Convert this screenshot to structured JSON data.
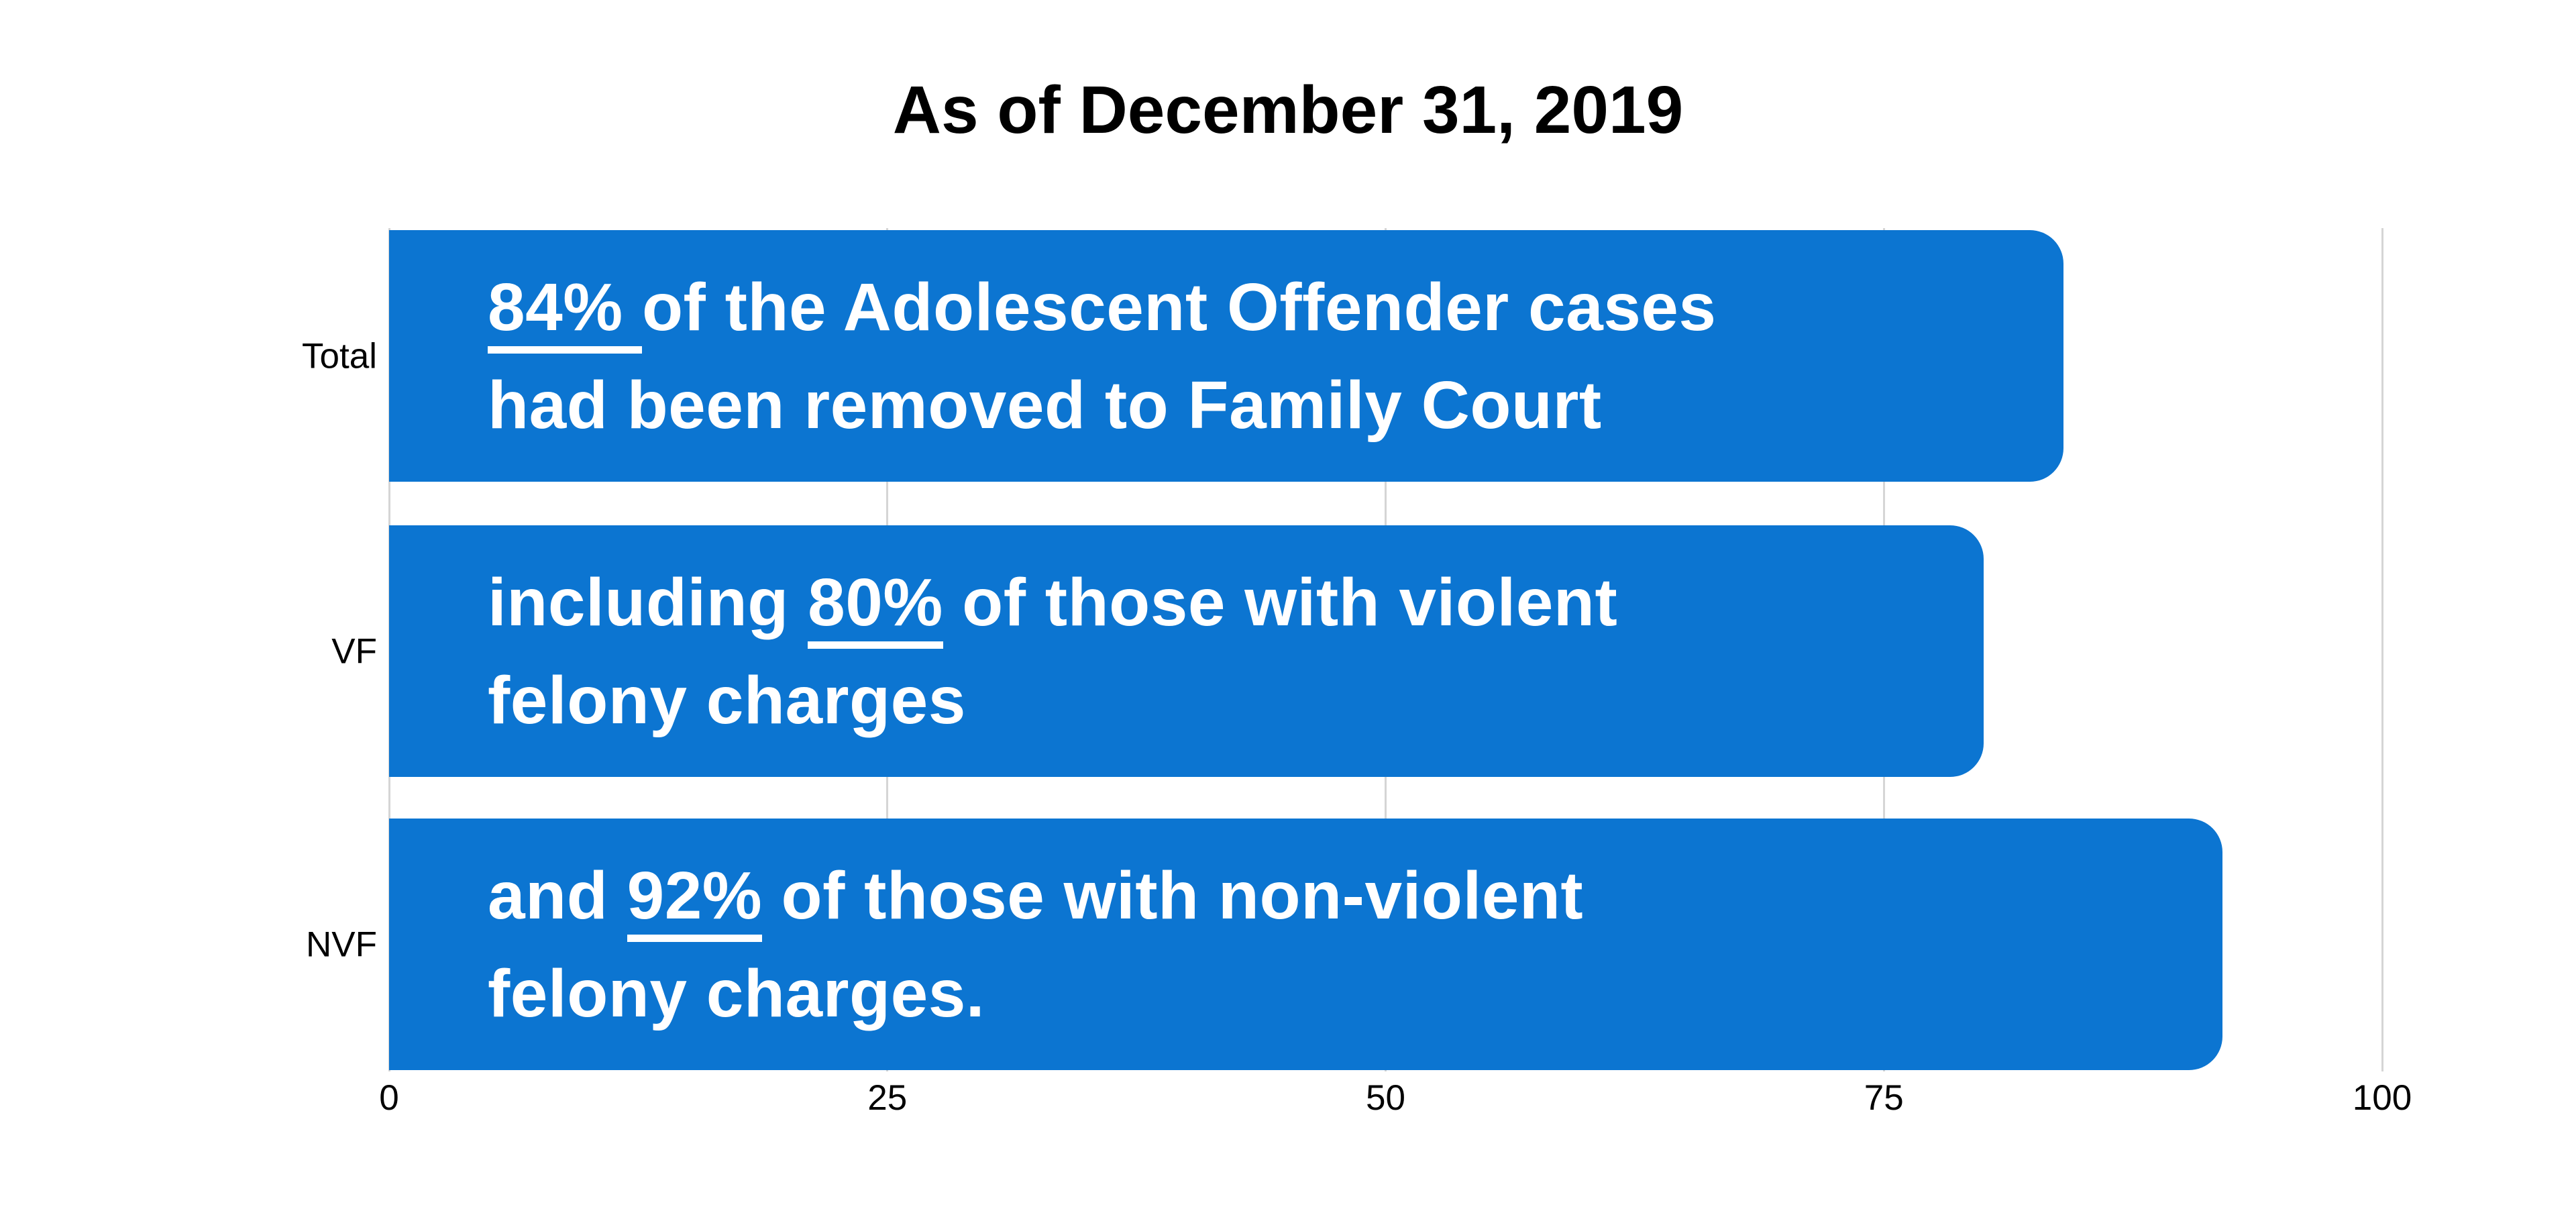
{
  "colors": {
    "bar_fill": "#0c75d1",
    "gridline": "#d5d5d5",
    "bar_text": "#ffffff",
    "title_text": "#000000"
  },
  "chart_data": {
    "type": "bar",
    "orientation": "horizontal",
    "title": "As of December 31, 2019",
    "xlabel": "",
    "ylabel": "",
    "xlim": [
      0,
      100
    ],
    "xticks": [
      0,
      25,
      50,
      75,
      100
    ],
    "grid": "vertical",
    "legend": "none",
    "categories": [
      "Total",
      "VF",
      "NVF"
    ],
    "values": [
      84,
      80,
      92
    ],
    "annotations": [
      {
        "text": "84% of the Adolescent Offender cases had been removed to Family Court",
        "lines": [
          [
            {
              "t": "84% ",
              "u": true
            },
            {
              "t": "of the Adolescent Offender cases",
              "u": false
            }
          ],
          [
            {
              "t": "had been removed to Family Court",
              "u": false
            }
          ]
        ]
      },
      {
        "text": "including 80% of those with violent felony charges",
        "lines": [
          [
            {
              "t": "including ",
              "u": false
            },
            {
              "t": "80%",
              "u": true
            },
            {
              "t": " of those with violent",
              "u": false
            }
          ],
          [
            {
              "t": "felony charges",
              "u": false
            }
          ]
        ]
      },
      {
        "text": "and 92% of those with non-violent felony charges.",
        "lines": [
          [
            {
              "t": "and ",
              "u": false
            },
            {
              "t": "92%",
              "u": true
            },
            {
              "t": " of those with non-violent",
              "u": false
            }
          ],
          [
            {
              "t": "felony charges.",
              "u": false
            }
          ]
        ]
      }
    ]
  }
}
